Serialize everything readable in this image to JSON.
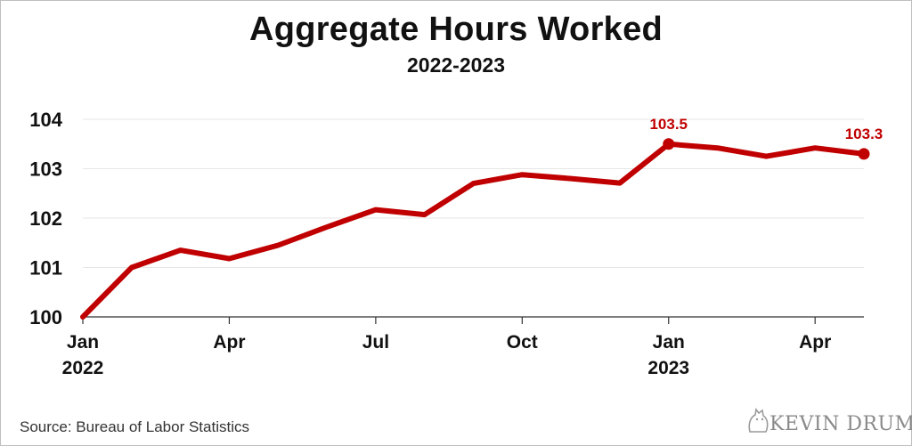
{
  "chart_data": {
    "type": "line",
    "title": "Aggregate Hours Worked",
    "subtitle": "2022-2023",
    "xlabel": "",
    "ylabel": "",
    "x": [
      "2022-01",
      "2022-02",
      "2022-03",
      "2022-04",
      "2022-05",
      "2022-06",
      "2022-07",
      "2022-08",
      "2022-09",
      "2022-10",
      "2022-11",
      "2022-12",
      "2023-01",
      "2023-02",
      "2023-03",
      "2023-04",
      "2023-05"
    ],
    "series": [
      {
        "values": [
          100.0,
          101.0,
          101.35,
          101.18,
          101.45,
          101.82,
          102.17,
          102.07,
          102.7,
          102.88,
          102.8,
          102.71,
          103.5,
          103.42,
          103.25,
          103.42,
          103.3
        ],
        "color": "#c00000"
      }
    ],
    "ylim": [
      100,
      104
    ],
    "yticks": [
      "100",
      "101",
      "102",
      "103",
      "104"
    ],
    "xticks": [
      {
        "label": "Jan",
        "year": "2022",
        "index": 0
      },
      {
        "label": "Apr",
        "year": "",
        "index": 3
      },
      {
        "label": "Jul",
        "year": "",
        "index": 6
      },
      {
        "label": "Oct",
        "year": "",
        "index": 9
      },
      {
        "label": "Jan",
        "year": "2023",
        "index": 12
      },
      {
        "label": "Apr",
        "year": "",
        "index": 15
      }
    ],
    "annotations": [
      {
        "index": 12,
        "text": "103.5"
      },
      {
        "index": 16,
        "text": "103.3"
      }
    ],
    "grid": true
  },
  "footer": {
    "source": "Source: Bureau of Labor Statistics",
    "brand": "KEVIN DRUM"
  }
}
